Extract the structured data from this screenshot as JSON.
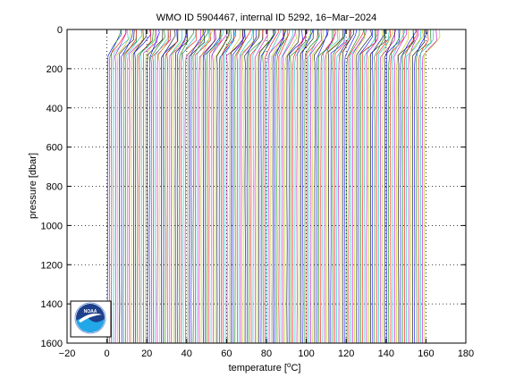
{
  "chart_data": {
    "type": "line",
    "title": "WMO ID 5904467, internal ID 5292, 16−Mar−2024",
    "xlabel": "temperature [",
    "xlabel_unit": "o",
    "xlabel_unit_suffix": "C]",
    "ylabel": "pressure [dbar]",
    "xlim": [
      -20,
      180
    ],
    "ylim": [
      0,
      1600
    ],
    "y_reversed": true,
    "grid": true,
    "x_ticks": [
      -20,
      0,
      20,
      40,
      60,
      80,
      100,
      120,
      140,
      160,
      180
    ],
    "x_tick_labels": [
      "−20",
      "0",
      "20",
      "40",
      "60",
      "80",
      "100",
      "120",
      "140",
      "160",
      "180"
    ],
    "y_ticks": [
      0,
      200,
      400,
      600,
      800,
      1000,
      1200,
      1400,
      1600
    ],
    "y_tick_labels": [
      "0",
      "200",
      "400",
      "600",
      "800",
      "1000",
      "1200",
      "1400",
      "1600"
    ],
    "series_colors": [
      "#0000ff",
      "#008000",
      "#ff0000",
      "#00bfbf",
      "#bf00bf",
      "#bfbf00",
      "#000000"
    ],
    "profiles": {
      "count": 160,
      "first_offset": 0,
      "offset_step": 1,
      "deep_temperature": 0.3,
      "surface_temperature": 6.5,
      "thermocline_pressure": 130,
      "max_pressure": 1600,
      "extended_max_pressure": 1700,
      "extended_from_offset": 120
    },
    "logo": "NOAA"
  }
}
